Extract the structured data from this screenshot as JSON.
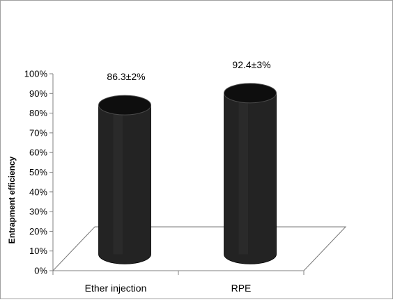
{
  "chart_data": {
    "type": "bar",
    "style": "3d-cylinder",
    "categories": [
      "Ether injection",
      "RPE"
    ],
    "values": [
      86.3,
      92.4
    ],
    "data_labels": [
      "86.3±2%",
      "92.4±3%"
    ],
    "ylabel": "Entrapment efficiency",
    "xlabel": "",
    "ylim": [
      0,
      100
    ],
    "yticks": [
      "0%",
      "10%",
      "20%",
      "30%",
      "40%",
      "50%",
      "60%",
      "70%",
      "80%",
      "90%",
      "100%"
    ],
    "grid": false,
    "legend": "none",
    "colors": {
      "bar_body": "#232323",
      "bar_top": "#0e0e0e",
      "bar_highlight": "#3a3a3a",
      "floor_fill": "#ffffff",
      "floor_stroke": "#777777"
    }
  }
}
